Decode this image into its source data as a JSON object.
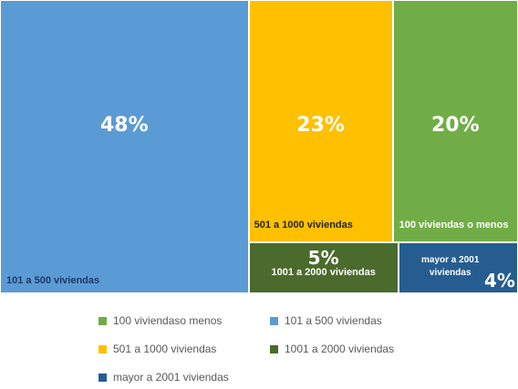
{
  "chart_data": {
    "type": "treemap",
    "categories": [
      "100 viviendas o menos",
      "101 a 500 viviendas",
      "501 a 1000 viviendas",
      "1001 a 2000 viviendas",
      "mayor a 2001 viviendas"
    ],
    "legend_labels": [
      "100 viviendaso menos",
      "101 a 500 viviendas",
      "501 a 1000 viviendas",
      "1001 a 2000 viviendas",
      "mayor a 2001 viviendas"
    ],
    "values": [
      20,
      48,
      23,
      5,
      4
    ],
    "value_labels": [
      "20%",
      "48%",
      "23%",
      "5%",
      "4%"
    ],
    "colors": [
      "#70ad47",
      "#5b9bd5",
      "#ffc000",
      "#4a6b2c",
      "#265d91"
    ]
  }
}
